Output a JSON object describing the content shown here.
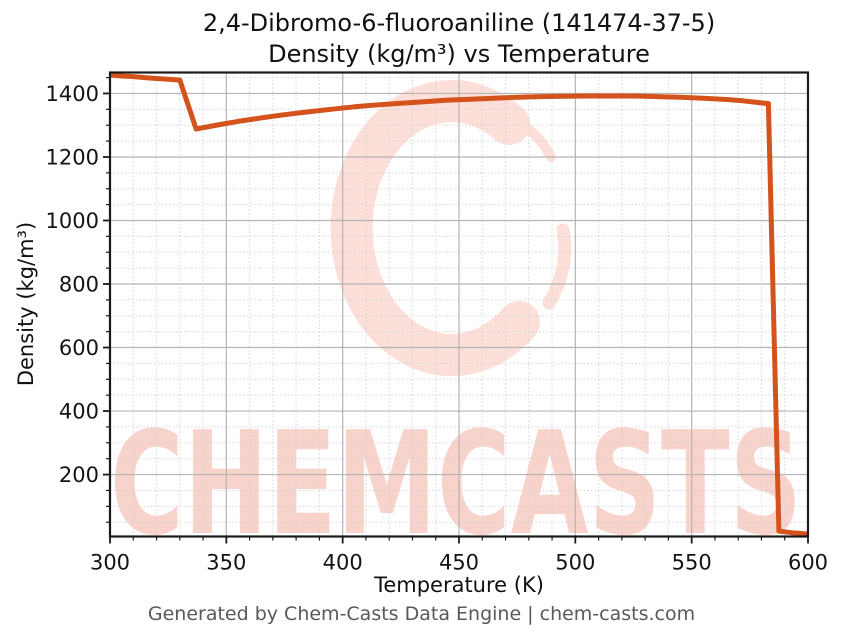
{
  "title": {
    "line1": "2,4-Dibromo-6-fluoroaniline (141474-37-5)",
    "line2": "Density (kg/m³) vs Temperature"
  },
  "footer": {
    "text": "Generated by Chem-Casts Data Engine | chem-casts.com"
  },
  "watermark": {
    "text": "CHEMCASTS",
    "logo": "brush-stroke-circle-icon",
    "text_color": "#f8d3cb",
    "logo_color": "#fbdfd8"
  },
  "chart_data": {
    "type": "line",
    "title": "2,4-Dibromo-6-fluoroaniline (141474-37-5)\nDensity (kg/m³) vs Temperature",
    "xlabel": "Temperature (K)",
    "ylabel": "Density (kg/m³)",
    "xlim": [
      300,
      600
    ],
    "ylim": [
      5,
      1466
    ],
    "x_major_ticks": [
      300,
      350,
      400,
      450,
      500,
      550,
      600
    ],
    "x_minor_step": 10,
    "y_major_ticks": [
      200,
      400,
      600,
      800,
      1000,
      1200,
      1400
    ],
    "y_minor_step": 50,
    "grid": true,
    "legend": "none",
    "line_color": "#d4531d",
    "line_width": 5,
    "series": [
      {
        "name": "Density",
        "points": [
          [
            300,
            1458
          ],
          [
            305,
            1455
          ],
          [
            310,
            1453
          ],
          [
            315,
            1450
          ],
          [
            320,
            1447
          ],
          [
            325,
            1445
          ],
          [
            330,
            1442
          ],
          [
            337,
            1288
          ],
          [
            345,
            1299
          ],
          [
            355,
            1312
          ],
          [
            365,
            1323
          ],
          [
            375,
            1333
          ],
          [
            385,
            1342
          ],
          [
            395,
            1350
          ],
          [
            405,
            1358
          ],
          [
            415,
            1364
          ],
          [
            425,
            1369
          ],
          [
            435,
            1374
          ],
          [
            445,
            1379
          ],
          [
            455,
            1382
          ],
          [
            465,
            1385
          ],
          [
            475,
            1388
          ],
          [
            485,
            1390
          ],
          [
            495,
            1391
          ],
          [
            505,
            1392
          ],
          [
            515,
            1392
          ],
          [
            525,
            1392
          ],
          [
            535,
            1390
          ],
          [
            545,
            1388
          ],
          [
            555,
            1385
          ],
          [
            565,
            1381
          ],
          [
            572,
            1377
          ],
          [
            578,
            1372
          ],
          [
            583,
            1368
          ],
          [
            587.5,
            22
          ],
          [
            593,
            17
          ],
          [
            600,
            13
          ]
        ]
      }
    ]
  }
}
